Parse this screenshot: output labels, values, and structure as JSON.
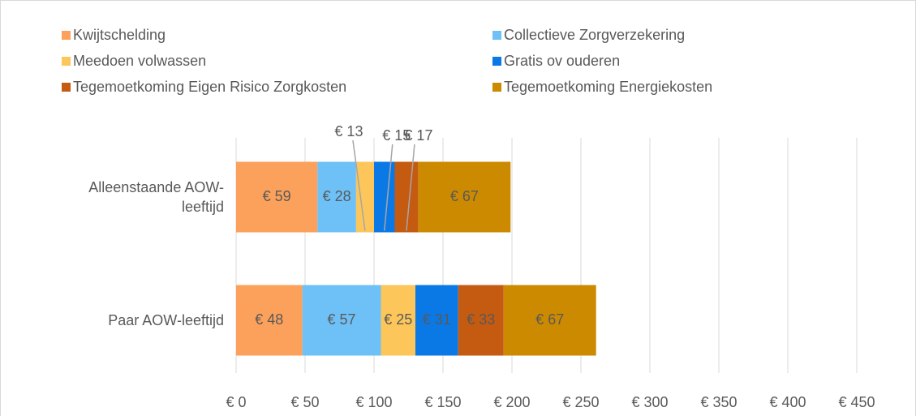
{
  "chart_data": {
    "type": "stacked_barh",
    "categories": [
      "Alleenstaande AOW-leeftijd",
      "Paar AOW-leeftijd"
    ],
    "series": [
      {
        "name": "Kwijtschelding",
        "color": "#FBA15B",
        "values": [
          59,
          48
        ],
        "value_labels": [
          "€ 59",
          "€ 48"
        ]
      },
      {
        "name": "Collectieve Zorgverzekering",
        "color": "#6EC1F7",
        "values": [
          28,
          57
        ],
        "value_labels": [
          "€ 28",
          "€ 57"
        ]
      },
      {
        "name": "Meedoen volwassen",
        "color": "#FDC65A",
        "values": [
          13,
          25
        ],
        "value_labels": [
          "€ 13",
          "€ 25"
        ]
      },
      {
        "name": "Gratis ov ouderen",
        "color": "#0A78E5",
        "values": [
          15,
          31
        ],
        "value_labels": [
          "€ 15",
          "€ 31"
        ]
      },
      {
        "name": "Tegemoetkoming Eigen Risico Zorgkosten",
        "color": "#C55A11",
        "values": [
          17,
          33
        ],
        "value_labels": [
          "€ 17",
          "€ 33"
        ]
      },
      {
        "name": "Tegemoetkoming Energiekosten",
        "color": "#CC8A00",
        "values": [
          67,
          67
        ],
        "value_labels": [
          "€ 67",
          "€ 67"
        ]
      }
    ],
    "xlim": [
      0,
      450
    ],
    "xticks": [
      {
        "value": 0,
        "label": "€ 0"
      },
      {
        "value": 50,
        "label": "€ 50"
      },
      {
        "value": 100,
        "label": "€ 100"
      },
      {
        "value": 150,
        "label": "€ 150"
      },
      {
        "value": 200,
        "label": "€ 200"
      },
      {
        "value": 250,
        "label": "€ 250"
      },
      {
        "value": 300,
        "label": "€ 300"
      },
      {
        "value": 350,
        "label": "€ 350"
      },
      {
        "value": 400,
        "label": "€ 400"
      },
      {
        "value": 450,
        "label": "€ 450"
      }
    ],
    "grid": true,
    "legend": "top"
  }
}
